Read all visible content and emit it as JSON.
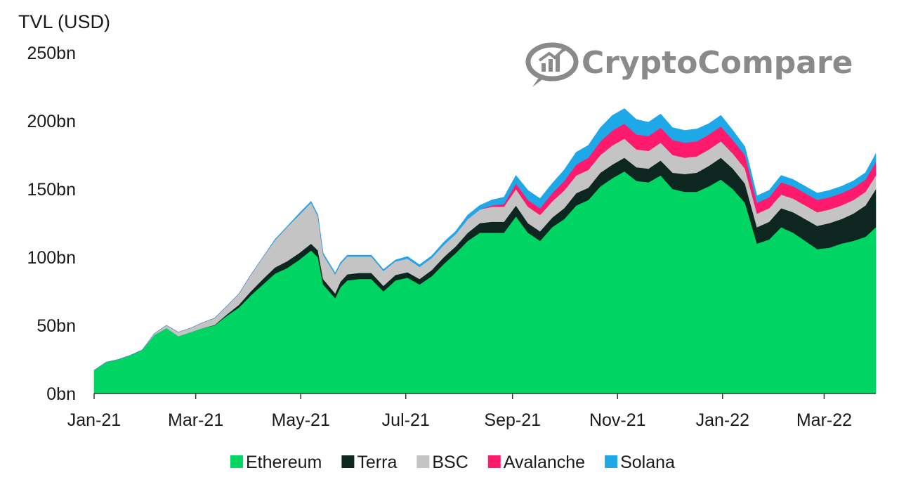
{
  "watermark": {
    "text": "CryptoCompare",
    "icon": "chart-bubble-icon"
  },
  "chart_data": {
    "type": "area",
    "stacked": true,
    "title": "",
    "ylabel": "TVL (USD)",
    "xlabel": "",
    "ylim": [
      0,
      250
    ],
    "y_unit": "bn",
    "yticks": [
      0,
      50,
      100,
      150,
      200,
      250
    ],
    "ytick_labels": [
      "0bn",
      "50bn",
      "100bn",
      "150bn",
      "200bn",
      "250bn"
    ],
    "xlim": [
      0,
      454
    ],
    "xticks": [
      {
        "label": "Jan-21",
        "day": 0
      },
      {
        "label": "Mar-21",
        "day": 59
      },
      {
        "label": "May-21",
        "day": 120
      },
      {
        "label": "Jul-21",
        "day": 181
      },
      {
        "label": "Sep-21",
        "day": 243
      },
      {
        "label": "Nov-21",
        "day": 304
      },
      {
        "label": "Jan-22",
        "day": 365
      },
      {
        "label": "Mar-22",
        "day": 424
      }
    ],
    "legend_position": "bottom-center",
    "x": [
      0,
      7,
      14,
      21,
      28,
      35,
      42,
      49,
      56,
      63,
      70,
      77,
      84,
      91,
      98,
      105,
      112,
      119,
      126,
      130,
      133,
      140,
      143,
      147,
      154,
      161,
      168,
      175,
      182,
      189,
      196,
      203,
      210,
      217,
      224,
      231,
      238,
      245,
      252,
      259,
      266,
      273,
      280,
      287,
      294,
      301,
      308,
      315,
      322,
      329,
      336,
      343,
      350,
      357,
      364,
      371,
      378,
      385,
      392,
      399,
      406,
      413,
      420,
      427,
      434,
      441,
      448,
      454
    ],
    "series": [
      {
        "name": "Ethereum",
        "color": "#00d564",
        "values": [
          17,
          23,
          25,
          28,
          32,
          43,
          48,
          42,
          45,
          48,
          50,
          57,
          63,
          72,
          80,
          88,
          92,
          98,
          105,
          100,
          80,
          70,
          78,
          83,
          84,
          84,
          75,
          83,
          85,
          80,
          86,
          95,
          103,
          112,
          118,
          118,
          118,
          130,
          118,
          112,
          122,
          128,
          138,
          142,
          152,
          158,
          163,
          156,
          155,
          160,
          150,
          148,
          148,
          152,
          157,
          150,
          140,
          110,
          113,
          122,
          118,
          112,
          106,
          107,
          110,
          112,
          115,
          122
        ]
      },
      {
        "name": "Terra",
        "color": "#0d2620",
        "values": [
          0,
          0,
          0,
          0,
          0,
          0,
          0,
          0,
          0,
          0,
          0.3,
          1,
          2,
          3,
          4,
          4.5,
          5,
          5,
          5,
          5,
          4,
          3.5,
          4,
          4.5,
          4.5,
          4.5,
          4,
          4,
          4,
          4,
          4.5,
          5,
          5,
          6,
          7,
          8,
          8,
          8,
          7,
          7,
          7,
          8,
          9,
          9,
          10,
          10,
          10,
          10,
          10,
          11,
          12,
          13,
          14,
          15,
          16,
          15,
          14,
          12,
          13,
          14,
          15,
          16,
          17,
          18,
          18,
          20,
          23,
          28
        ]
      },
      {
        "name": "BSC",
        "color": "#c4c4c4",
        "values": [
          0,
          0,
          0,
          0,
          0,
          1,
          2,
          3,
          3,
          4,
          5,
          6,
          8,
          12,
          16,
          20,
          25,
          28,
          30,
          25,
          18,
          14,
          13,
          13,
          12,
          12,
          11,
          10,
          10,
          9,
          9,
          9,
          9,
          10,
          10,
          11,
          11,
          12,
          12,
          12,
          12,
          13,
          13,
          13,
          13,
          14,
          14,
          13,
          13,
          13,
          13,
          12,
          12,
          12,
          12,
          11,
          11,
          10,
          10,
          10,
          10,
          10,
          10,
          10,
          10,
          10,
          10,
          10
        ]
      },
      {
        "name": "Avalanche",
        "color": "#ff1a6e",
        "values": [
          0,
          0,
          0,
          0,
          0,
          0,
          0,
          0,
          0,
          0,
          0,
          0,
          0,
          0,
          0,
          0,
          0,
          0,
          0,
          0,
          0,
          0,
          0,
          0,
          0,
          0,
          0,
          0,
          0,
          0,
          0,
          0,
          0,
          0,
          0,
          1,
          2,
          4,
          5,
          5,
          6,
          7,
          8,
          9,
          10,
          11,
          11,
          11,
          11,
          11,
          11,
          11,
          11,
          11,
          11,
          10,
          10,
          8,
          8,
          9,
          9,
          9,
          9,
          9,
          9,
          9,
          9,
          10
        ]
      },
      {
        "name": "Solana",
        "color": "#1ea8e8",
        "values": [
          0,
          0,
          0,
          0,
          0,
          0,
          0,
          0,
          0,
          0,
          0,
          0,
          0,
          0,
          0,
          0.5,
          0.5,
          1,
          1,
          1,
          1,
          1,
          1,
          1,
          1,
          1,
          1,
          1,
          1.5,
          1.5,
          1.5,
          2,
          2,
          3,
          3,
          4,
          5,
          6,
          7,
          7,
          7,
          8,
          9,
          9,
          10,
          11,
          11,
          11,
          10,
          10,
          9,
          9,
          9,
          8,
          8,
          7,
          6,
          5,
          5,
          5,
          5,
          5,
          5,
          5,
          5,
          5,
          5,
          6
        ]
      }
    ]
  }
}
